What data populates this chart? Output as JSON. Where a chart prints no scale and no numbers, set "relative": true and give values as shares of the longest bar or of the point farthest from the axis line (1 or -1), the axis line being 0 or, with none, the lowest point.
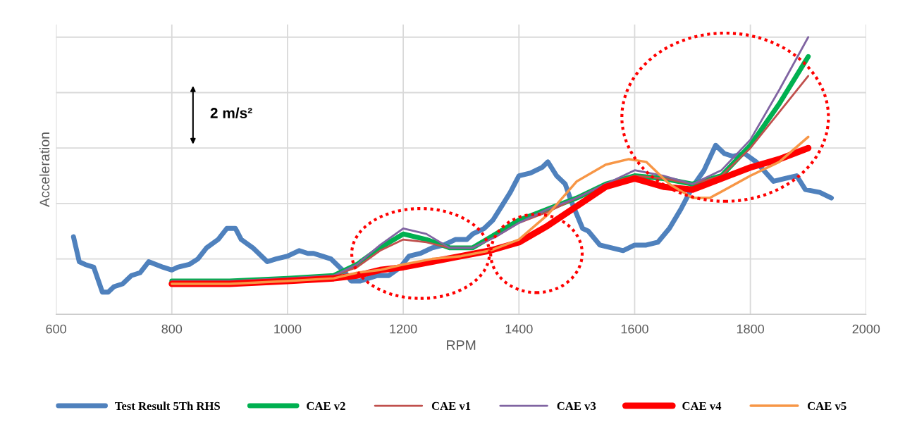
{
  "chart_data": {
    "type": "line",
    "xlabel": "RPM",
    "ylabel": "Acceleration",
    "relative": true,
    "xlim": [
      600,
      2000
    ],
    "xticks": [
      600,
      800,
      1000,
      1200,
      1400,
      1600,
      1800,
      2000
    ],
    "grid": true,
    "legend": "bottom",
    "marker": "none",
    "line_style": "solid",
    "annotations": [
      "2 m/s²"
    ],
    "series": [
      {
        "name": "Test Result 5Th RHS",
        "color": "#4f81bd",
        "x": [
          630,
          640,
          650,
          665,
          680,
          690,
          700,
          715,
          730,
          745,
          760,
          785,
          800,
          810,
          830,
          845,
          860,
          880,
          895,
          910,
          920,
          940,
          965,
          980,
          1000,
          1020,
          1035,
          1045,
          1060,
          1075,
          1090,
          1100,
          1110,
          1125,
          1140,
          1155,
          1175,
          1195,
          1210,
          1230,
          1250,
          1270,
          1290,
          1310,
          1320,
          1340,
          1355,
          1370,
          1385,
          1400,
          1420,
          1440,
          1450,
          1465,
          1480,
          1490,
          1500,
          1510,
          1520,
          1540,
          1560,
          1580,
          1600,
          1620,
          1640,
          1660,
          1680,
          1700,
          1720,
          1740,
          1755,
          1770,
          1790,
          1810,
          1840,
          1860,
          1880,
          1895,
          1920,
          1940
        ],
        "values": [
          0.28,
          0.19,
          0.18,
          0.17,
          0.08,
          0.08,
          0.1,
          0.11,
          0.14,
          0.15,
          0.19,
          0.17,
          0.16,
          0.17,
          0.18,
          0.2,
          0.24,
          0.27,
          0.31,
          0.31,
          0.27,
          0.24,
          0.19,
          0.2,
          0.21,
          0.23,
          0.22,
          0.22,
          0.21,
          0.2,
          0.17,
          0.15,
          0.12,
          0.12,
          0.13,
          0.14,
          0.14,
          0.17,
          0.21,
          0.22,
          0.24,
          0.25,
          0.27,
          0.27,
          0.29,
          0.31,
          0.34,
          0.39,
          0.44,
          0.5,
          0.51,
          0.53,
          0.55,
          0.5,
          0.47,
          0.41,
          0.36,
          0.31,
          0.3,
          0.25,
          0.24,
          0.23,
          0.25,
          0.25,
          0.26,
          0.31,
          0.38,
          0.46,
          0.52,
          0.61,
          0.58,
          0.57,
          0.58,
          0.55,
          0.48,
          0.49,
          0.5,
          0.45,
          0.44,
          0.42
        ]
      },
      {
        "name": "CAE v2",
        "color": "#00b050",
        "x": [
          800,
          900,
          1000,
          1080,
          1120,
          1160,
          1200,
          1240,
          1280,
          1320,
          1360,
          1400,
          1450,
          1500,
          1550,
          1600,
          1650,
          1700,
          1750,
          1800,
          1850,
          1900
        ],
        "values": [
          0.12,
          0.12,
          0.13,
          0.14,
          0.18,
          0.24,
          0.29,
          0.27,
          0.24,
          0.24,
          0.29,
          0.34,
          0.38,
          0.42,
          0.47,
          0.5,
          0.49,
          0.47,
          0.5,
          0.61,
          0.76,
          0.93
        ]
      },
      {
        "name": "CAE v1",
        "color": "#c0504d",
        "x": [
          800,
          900,
          1000,
          1080,
          1120,
          1160,
          1200,
          1240,
          1280,
          1320,
          1360,
          1400,
          1450,
          1500,
          1550,
          1600,
          1650,
          1700,
          1750,
          1800,
          1850,
          1900
        ],
        "values": [
          0.12,
          0.12,
          0.13,
          0.14,
          0.17,
          0.23,
          0.27,
          0.26,
          0.24,
          0.24,
          0.28,
          0.33,
          0.37,
          0.42,
          0.47,
          0.5,
          0.49,
          0.47,
          0.5,
          0.6,
          0.73,
          0.86
        ]
      },
      {
        "name": "CAE v3",
        "color": "#8064a2",
        "x": [
          800,
          900,
          1000,
          1080,
          1120,
          1160,
          1200,
          1240,
          1280,
          1320,
          1360,
          1400,
          1450,
          1500,
          1550,
          1600,
          1650,
          1700,
          1750,
          1800,
          1850,
          1900
        ],
        "values": [
          0.12,
          0.12,
          0.13,
          0.14,
          0.18,
          0.25,
          0.31,
          0.29,
          0.24,
          0.24,
          0.28,
          0.33,
          0.38,
          0.42,
          0.47,
          0.52,
          0.5,
          0.47,
          0.52,
          0.63,
          0.81,
          1.0
        ]
      },
      {
        "name": "CAE v4",
        "color": "#ff0000",
        "x": [
          800,
          900,
          1000,
          1080,
          1120,
          1160,
          1200,
          1250,
          1300,
          1350,
          1400,
          1450,
          1500,
          1550,
          1600,
          1650,
          1700,
          1750,
          1800,
          1850,
          1900
        ],
        "values": [
          0.11,
          0.11,
          0.12,
          0.13,
          0.14,
          0.16,
          0.17,
          0.19,
          0.21,
          0.23,
          0.26,
          0.32,
          0.39,
          0.46,
          0.49,
          0.46,
          0.45,
          0.49,
          0.53,
          0.56,
          0.6
        ]
      },
      {
        "name": "CAE v5",
        "color": "#f79646",
        "x": [
          800,
          900,
          1000,
          1080,
          1120,
          1160,
          1200,
          1250,
          1300,
          1350,
          1400,
          1450,
          1500,
          1550,
          1590,
          1620,
          1660,
          1700,
          1730,
          1800,
          1850,
          1900
        ],
        "values": [
          0.11,
          0.11,
          0.12,
          0.13,
          0.15,
          0.16,
          0.18,
          0.2,
          0.21,
          0.23,
          0.27,
          0.36,
          0.48,
          0.54,
          0.56,
          0.55,
          0.47,
          0.42,
          0.42,
          0.5,
          0.55,
          0.64
        ]
      }
    ]
  }
}
